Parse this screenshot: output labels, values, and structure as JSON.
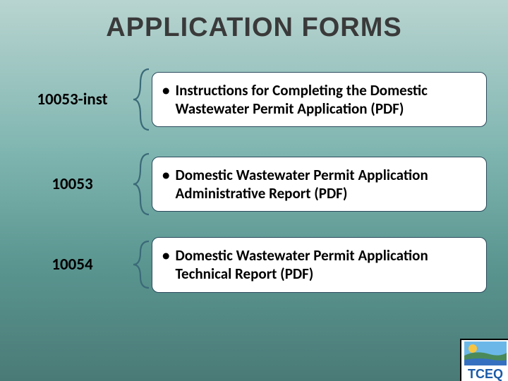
{
  "title": {
    "text": "APPLICATION FORMS",
    "color": "#3a3a3a",
    "fontsize": 38
  },
  "label_style": {
    "color": "#000000",
    "fontsize": 23
  },
  "desc_style": {
    "color": "#000000",
    "fontsize": 21,
    "background": "#ffffff",
    "border_color": "#2a4a5c",
    "border_radius": 10
  },
  "bracket_style": {
    "stroke": "#3a6a78",
    "stroke_width": 2.2
  },
  "forms": [
    {
      "id": "10053-inst",
      "description": "Instructions for Completing the Domestic Wastewater Permit Application (PDF)",
      "bracket_height": 90
    },
    {
      "id": "10053",
      "description": "Domestic Wastewater Permit Application Administrative Report (PDF)",
      "bracket_height": 90
    },
    {
      "id": "10054",
      "description": "Domestic Wastewater Permit Application Technical Report (PDF)",
      "bracket_height": 70
    }
  ],
  "logo": {
    "text": "TCEQ",
    "sky_color": "#6bb8e8",
    "sun_color": "#f5c542",
    "land_color": "#4a8a5a",
    "water_color": "#3570c0",
    "text_color": "#1a5aa8"
  }
}
